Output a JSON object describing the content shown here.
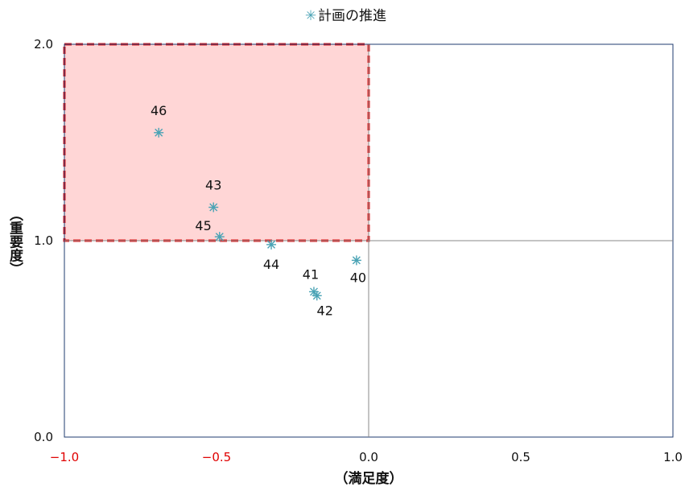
{
  "chart_data": {
    "type": "scatter",
    "title": "",
    "legend": {
      "position": "top",
      "marker": "✳",
      "label": "計画の推進"
    },
    "xlabel": "（満足度）",
    "ylabel": "（重要度）",
    "xlim": [
      -1.0,
      1.0
    ],
    "ylim": [
      0.0,
      2.0
    ],
    "xticks": [
      "−1.0",
      "−0.5",
      "0.0",
      "0.5",
      "1.0"
    ],
    "yticks": [
      "0.0",
      "1.0",
      "2.0"
    ],
    "negative_tick_color": "#e00000",
    "marker_color": "#4aa3b5",
    "highlight": {
      "x": [
        -1.0,
        0.0
      ],
      "y": [
        1.0,
        2.0
      ],
      "fill": "#ffd6d6",
      "stroke": "#e31a1c"
    },
    "series": [
      {
        "name": "計画の推進",
        "points": [
          {
            "label": "46",
            "x": -0.69,
            "y": 1.55
          },
          {
            "label": "43",
            "x": -0.51,
            "y": 1.17
          },
          {
            "label": "45",
            "x": -0.49,
            "y": 1.02
          },
          {
            "label": "44",
            "x": -0.32,
            "y": 0.98
          },
          {
            "label": "40",
            "x": -0.04,
            "y": 0.9
          },
          {
            "label": "41",
            "x": -0.18,
            "y": 0.74
          },
          {
            "label": "42",
            "x": -0.17,
            "y": 0.72
          }
        ]
      }
    ]
  }
}
